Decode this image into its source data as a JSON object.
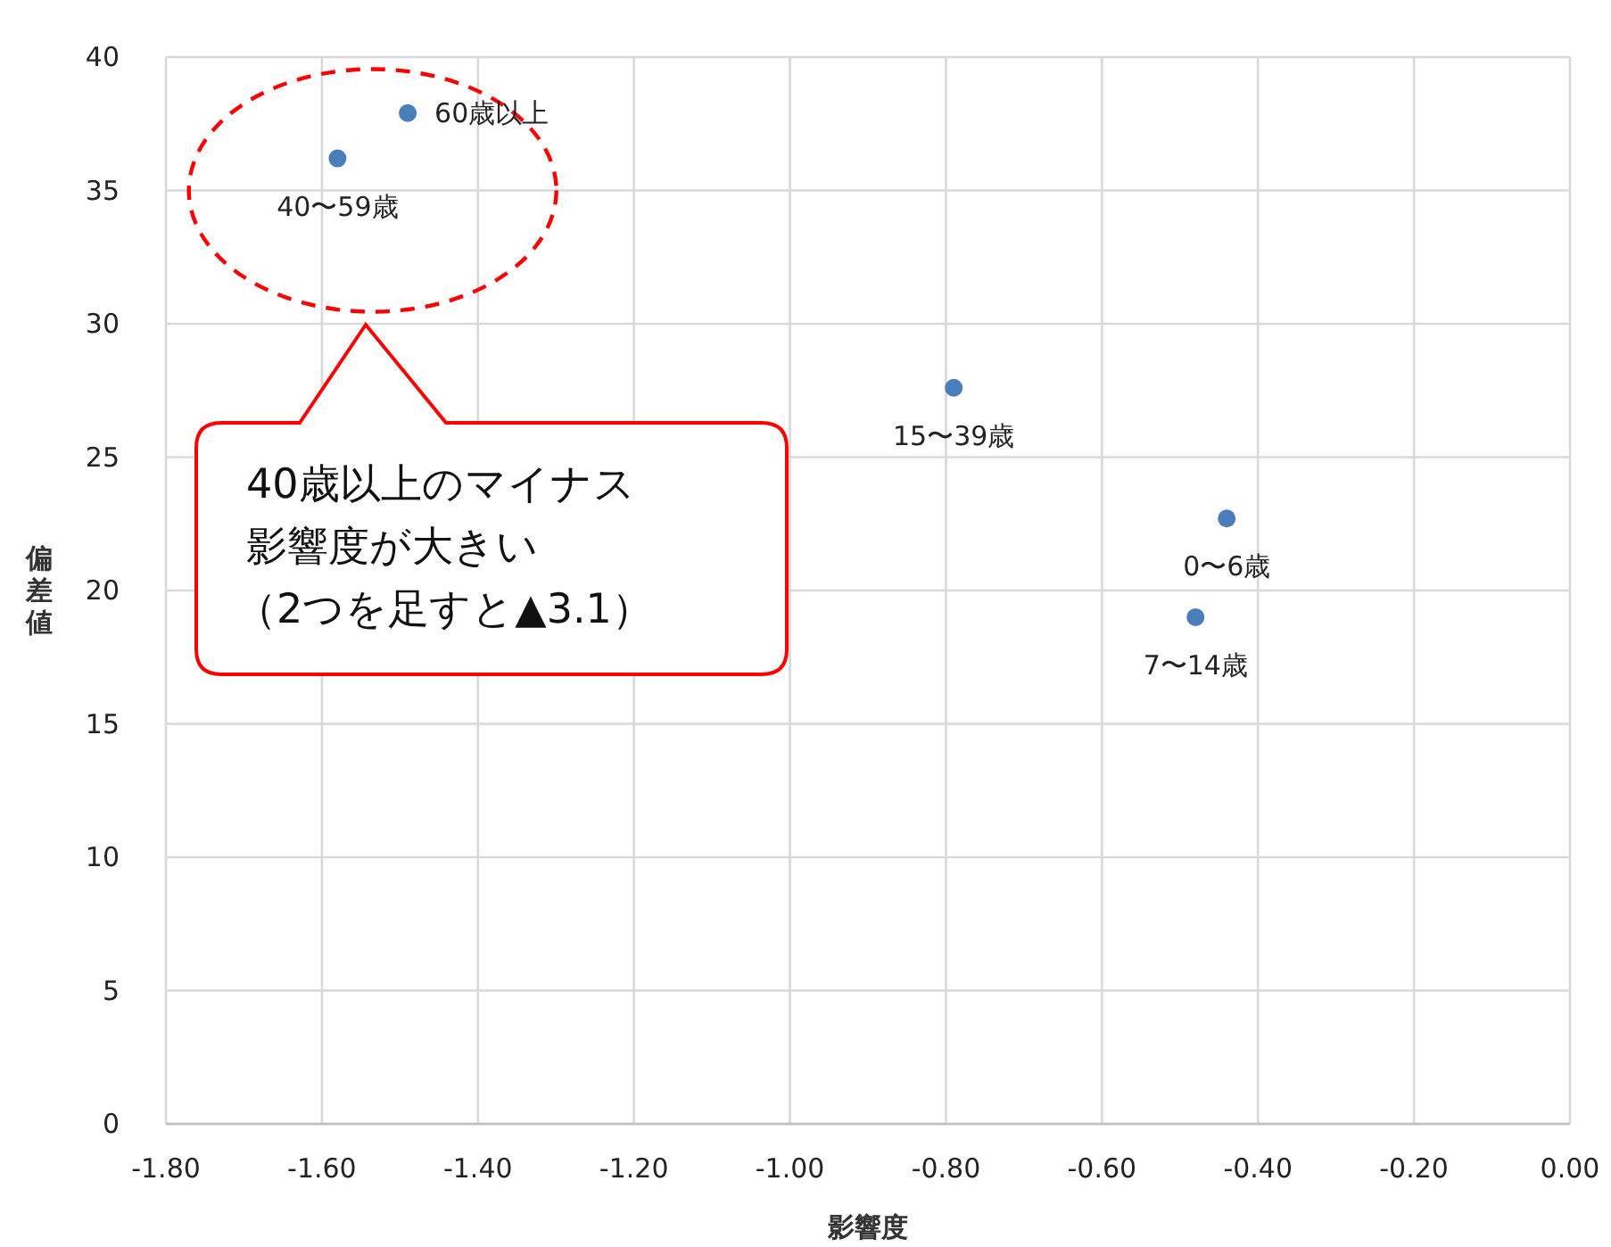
{
  "chart_data": {
    "type": "scatter",
    "xlabel": "影響度",
    "ylabel": "偏差値",
    "x": [
      -1.49,
      -1.58,
      -0.79,
      -0.44,
      -0.48
    ],
    "values": [
      37.9,
      36.2,
      27.6,
      22.7,
      19.0
    ],
    "color": "#4a7ebb",
    "marker": "circle",
    "grid": true,
    "xlim": [
      -1.8,
      0
    ],
    "ylim": [
      0,
      40
    ],
    "xticks": [
      {
        "value": -1.8,
        "label": "-1.80"
      },
      {
        "value": -1.6,
        "label": "-1.60"
      },
      {
        "value": -1.4,
        "label": "-1.40"
      },
      {
        "value": -1.2,
        "label": "-1.20"
      },
      {
        "value": -1.0,
        "label": "-1.00"
      },
      {
        "value": -0.8,
        "label": "-0.80"
      },
      {
        "value": -0.6,
        "label": "-0.60"
      },
      {
        "value": -0.4,
        "label": "-0.40"
      },
      {
        "value": -0.2,
        "label": "-0.20"
      },
      {
        "value": 0,
        "label": "0.00"
      }
    ],
    "yticks": [
      0,
      5,
      10,
      15,
      20,
      25,
      30,
      35,
      40
    ],
    "annotations": [
      {
        "text": "60歳以上",
        "x": -1.49,
        "y": 37.9
      },
      {
        "text": "40〜59歳",
        "x": -1.58,
        "y": 36.2
      },
      {
        "text": "15〜39歳",
        "x": -0.79,
        "y": 27.6
      },
      {
        "text": "0〜6歳",
        "x": -0.44,
        "y": 22.7
      },
      {
        "text": "7〜14歳",
        "x": -0.48,
        "y": 19.0
      },
      "40歳以上のマイナス",
      "影響度が大きい",
      "（2つを足すと▲3.1）"
    ]
  }
}
